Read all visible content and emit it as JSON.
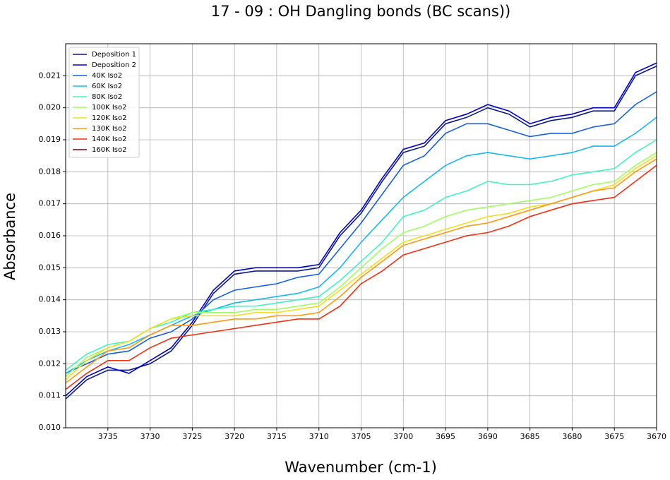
{
  "chart_data": {
    "type": "line",
    "title": "17 - 09 : OH Dangling bonds (BC scans))",
    "xlabel": "Wavenumber (cm-1)",
    "ylabel": "Absorbance",
    "x": [
      3740,
      3737.5,
      3735,
      3732.5,
      3730,
      3727.5,
      3725,
      3722.5,
      3720,
      3717.5,
      3715,
      3712.5,
      3710,
      3707.5,
      3705,
      3702.5,
      3700,
      3697.5,
      3695,
      3692.5,
      3690,
      3687.5,
      3685,
      3682.5,
      3680,
      3677.5,
      3675,
      3672.5,
      3670
    ],
    "xlim": [
      3740,
      3670
    ],
    "xticks": [
      3735,
      3730,
      3725,
      3720,
      3715,
      3710,
      3705,
      3700,
      3695,
      3690,
      3685,
      3680,
      3675,
      3670
    ],
    "ylim": [
      0.01,
      0.022
    ],
    "yticks": [
      {
        "value": 0.01,
        "label": "0.010"
      },
      0.011,
      0.012,
      0.013,
      0.014,
      0.015,
      0.016,
      0.017,
      0.018,
      0.019,
      {
        "value": 0.02,
        "label": "0.020"
      },
      0.021
    ],
    "grid": true,
    "legend": "upper left",
    "series": [
      {
        "name": "Deposition 1",
        "color": "#0a1a8a",
        "values": [
          0.0109,
          0.0115,
          0.0118,
          0.0118,
          0.012,
          0.0124,
          0.0132,
          0.0142,
          0.0148,
          0.0149,
          0.0149,
          0.0149,
          0.015,
          0.016,
          0.0167,
          0.0177,
          0.0186,
          0.0188,
          0.0195,
          0.0197,
          0.02,
          0.0198,
          0.0194,
          0.0196,
          0.0197,
          0.0199,
          0.0199,
          0.021,
          0.0213
        ]
      },
      {
        "name": "Deposition 2",
        "color": "#0000cd",
        "values": [
          0.011,
          0.0116,
          0.0119,
          0.0117,
          0.0121,
          0.0125,
          0.0133,
          0.0143,
          0.0149,
          0.015,
          0.015,
          0.015,
          0.0151,
          0.0161,
          0.0168,
          0.0178,
          0.0187,
          0.0189,
          0.0196,
          0.0198,
          0.0201,
          0.0199,
          0.0195,
          0.0197,
          0.0198,
          0.02,
          0.02,
          0.0211,
          0.0214
        ]
      },
      {
        "name": "40K Iso2",
        "color": "#1560e0",
        "values": [
          0.0117,
          0.012,
          0.0123,
          0.0124,
          0.0128,
          0.013,
          0.0134,
          0.014,
          0.0143,
          0.0144,
          0.0145,
          0.0147,
          0.0148,
          0.0156,
          0.0164,
          0.0173,
          0.0182,
          0.0185,
          0.0192,
          0.0195,
          0.0195,
          0.0193,
          0.0191,
          0.0192,
          0.0192,
          0.0194,
          0.0195,
          0.0201,
          0.0205
        ]
      },
      {
        "name": "60K Iso2",
        "color": "#15b9f0",
        "values": [
          0.0117,
          0.0121,
          0.0124,
          0.0126,
          0.0129,
          0.0132,
          0.0135,
          0.0137,
          0.0139,
          0.014,
          0.0141,
          0.0142,
          0.0144,
          0.015,
          0.0158,
          0.0165,
          0.0172,
          0.0177,
          0.0182,
          0.0185,
          0.0186,
          0.0185,
          0.0184,
          0.0185,
          0.0186,
          0.0188,
          0.0188,
          0.0192,
          0.0197
        ]
      },
      {
        "name": "80K Iso2",
        "color": "#3ff5c0",
        "values": [
          0.0118,
          0.0123,
          0.0126,
          0.0127,
          0.0131,
          0.0133,
          0.0136,
          0.0137,
          0.0138,
          0.0138,
          0.0139,
          0.014,
          0.0141,
          0.0146,
          0.0152,
          0.0158,
          0.0166,
          0.0168,
          0.0172,
          0.0174,
          0.0177,
          0.0176,
          0.0176,
          0.0177,
          0.0179,
          0.018,
          0.0181,
          0.0186,
          0.019
        ]
      },
      {
        "name": "100K Iso2",
        "color": "#a0ff60",
        "values": [
          0.0116,
          0.0122,
          0.0125,
          0.0127,
          0.0131,
          0.0134,
          0.0136,
          0.0136,
          0.0136,
          0.0137,
          0.0137,
          0.0138,
          0.0139,
          0.0144,
          0.015,
          0.0156,
          0.0161,
          0.0163,
          0.0166,
          0.0168,
          0.0169,
          0.017,
          0.0171,
          0.0172,
          0.0174,
          0.0176,
          0.0177,
          0.0182,
          0.0186
        ]
      },
      {
        "name": "120K Iso2",
        "color": "#f0e020",
        "values": [
          0.0115,
          0.0121,
          0.0125,
          0.0127,
          0.0131,
          0.0134,
          0.0135,
          0.0135,
          0.0135,
          0.0136,
          0.0136,
          0.0137,
          0.0138,
          0.0143,
          0.0148,
          0.0153,
          0.0158,
          0.016,
          0.0162,
          0.0164,
          0.0166,
          0.0167,
          0.0169,
          0.017,
          0.0172,
          0.0174,
          0.0176,
          0.0181,
          0.0185
        ]
      },
      {
        "name": "130K Iso2",
        "color": "#ff9a10",
        "values": [
          0.0114,
          0.0119,
          0.0124,
          0.0125,
          0.0129,
          0.0132,
          0.0132,
          0.0133,
          0.0134,
          0.0134,
          0.0135,
          0.0135,
          0.0136,
          0.0141,
          0.0147,
          0.0152,
          0.0157,
          0.0159,
          0.0161,
          0.0163,
          0.0164,
          0.0166,
          0.0168,
          0.017,
          0.0172,
          0.0174,
          0.0175,
          0.018,
          0.0184
        ]
      },
      {
        "name": "140K Iso2",
        "color": "#f03010",
        "values": [
          0.0112,
          0.0117,
          0.0121,
          0.0121,
          0.0125,
          0.0128,
          0.0129,
          0.013,
          0.0131,
          0.0132,
          0.0133,
          0.0134,
          0.0134,
          0.0138,
          0.0145,
          0.0149,
          0.0154,
          0.0156,
          0.0158,
          0.016,
          0.0161,
          0.0163,
          0.0166,
          0.0168,
          0.017,
          0.0171,
          0.0172,
          0.0177,
          0.0182
        ]
      },
      {
        "name": "160K Iso2",
        "color": "#800000",
        "values": [
          null,
          null,
          null,
          null,
          null,
          null,
          null,
          null,
          null,
          null,
          null,
          null,
          null,
          null,
          null,
          null,
          null,
          null,
          null,
          null,
          null,
          null,
          null,
          null,
          null,
          null,
          null,
          null,
          null
        ]
      }
    ]
  }
}
